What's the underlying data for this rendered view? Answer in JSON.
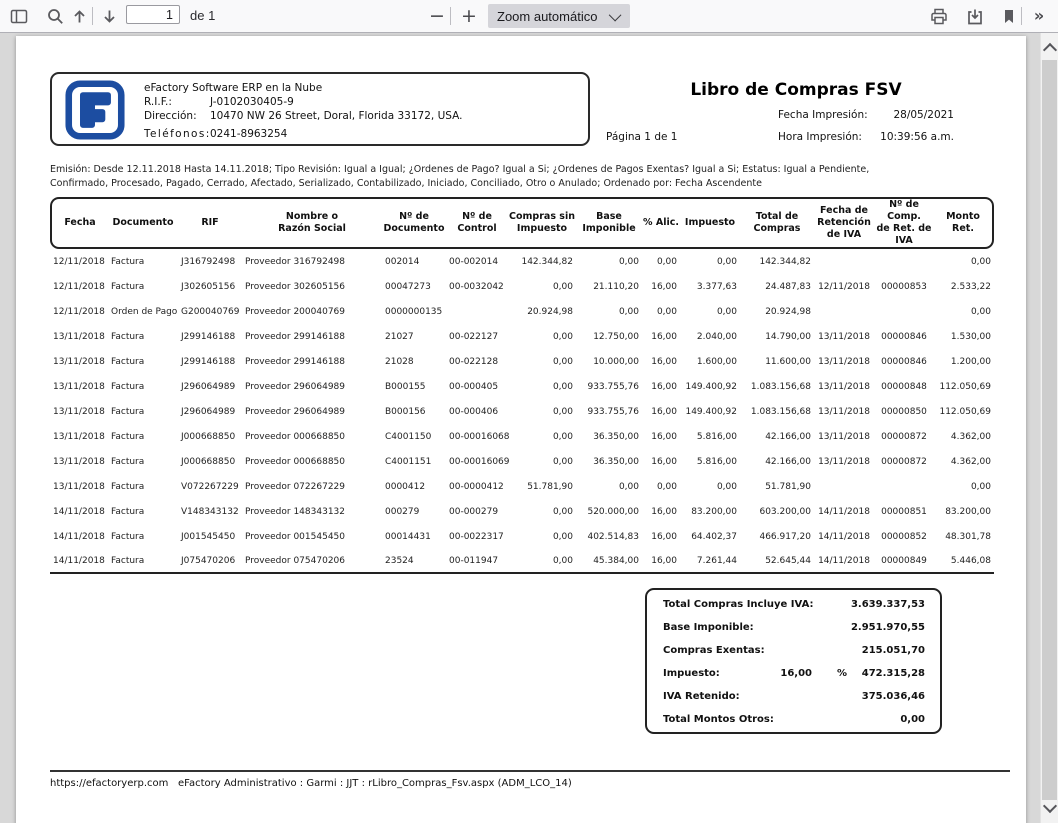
{
  "colors": {
    "logo_blue": "#1c4da1",
    "toolbar_bg": "#f9f9fa",
    "page_bg": "#ffffff"
  },
  "toolbar": {
    "page_input": "1",
    "page_count_label": "de 1",
    "zoom_select": "Zoom automático",
    "zoom_out_glyph": "−",
    "zoom_in_glyph": "+",
    "more_tools_glyph": "»"
  },
  "company": {
    "name": "eFactory Software ERP en la Nube",
    "rif_label": "R.I.F.:",
    "rif": "J-0102030405-9",
    "address_label": "Dirección:",
    "address": "10470 NW 26 Street, Doral, Florida 33172, USA.",
    "phones_label": "Teléfonos:",
    "phones": "0241-8963254"
  },
  "report": {
    "title": "Libro de Compras FSV",
    "fecha_impresion_label": "Fecha Impresión:",
    "fecha_impresion": "28/05/2021",
    "hora_impresion_label": "Hora Impresión:",
    "hora_impresion": "10:39:56 a.m.",
    "page_label": "Página 1 de 1",
    "filter_line1": "Emisión: Desde 12.11.2018  Hasta 14.11.2018; Tipo Revisión: Igual a Igual; ¿Ordenes de Pago? Igual a Si; ¿Ordenes de Pagos Exentas? Igual a Si; Estatus: Igual a Pendiente,",
    "filter_line2": "Confirmado, Procesado, Pagado, Cerrado, Afectado, Serializado, Contabilizado, Iniciado, Conciliado, Otro o Anulado; Ordenado por: Fecha Ascendente"
  },
  "table": {
    "headers": [
      "Fecha",
      "Documento",
      "RIF",
      "Nombre o\nRazón Social",
      "Nº de\nDocumento",
      "Nº de\nControl",
      "Compras sin\nImpuesto",
      "Base\nImponible",
      "% Alic.",
      "Impuesto",
      "Total de\nCompras",
      "Fecha de\nRetención\nde IVA",
      "Nº de Comp.\nde  Ret. de\nIVA",
      "Monto\nRet."
    ],
    "rows": [
      [
        "12/11/2018",
        "Factura",
        "J316792498",
        "Proveedor 316792498",
        "002014",
        "00-002014",
        "142.344,82",
        "0,00",
        "0,00",
        "0,00",
        "142.344,82",
        "",
        "",
        "0,00"
      ],
      [
        "12/11/2018",
        "Factura",
        "J302605156",
        "Proveedor 302605156",
        "00047273",
        "00-0032042",
        "0,00",
        "21.110,20",
        "16,00",
        "3.377,63",
        "24.487,83",
        "12/11/2018",
        "00000853",
        "2.533,22"
      ],
      [
        "12/11/2018",
        "Orden de Pago",
        "G200040769",
        "Proveedor 200040769",
        "0000000135",
        "",
        "20.924,98",
        "0,00",
        "0,00",
        "0,00",
        "20.924,98",
        "",
        "",
        "0,00"
      ],
      [
        "13/11/2018",
        "Factura",
        "J299146188",
        "Proveedor 299146188",
        "21027",
        "00-022127",
        "0,00",
        "12.750,00",
        "16,00",
        "2.040,00",
        "14.790,00",
        "13/11/2018",
        "00000846",
        "1.530,00"
      ],
      [
        "13/11/2018",
        "Factura",
        "J299146188",
        "Proveedor 299146188",
        "21028",
        "00-022128",
        "0,00",
        "10.000,00",
        "16,00",
        "1.600,00",
        "11.600,00",
        "13/11/2018",
        "00000846",
        "1.200,00"
      ],
      [
        "13/11/2018",
        "Factura",
        "J296064989",
        "Proveedor 296064989",
        "B000155",
        "00-000405",
        "0,00",
        "933.755,76",
        "16,00",
        "149.400,92",
        "1.083.156,68",
        "13/11/2018",
        "00000848",
        "112.050,69"
      ],
      [
        "13/11/2018",
        "Factura",
        "J296064989",
        "Proveedor 296064989",
        "B000156",
        "00-000406",
        "0,00",
        "933.755,76",
        "16,00",
        "149.400,92",
        "1.083.156,68",
        "13/11/2018",
        "00000850",
        "112.050,69"
      ],
      [
        "13/11/2018",
        "Factura",
        "J000668850",
        "Proveedor 000668850",
        "C4001150",
        "00-00016068",
        "0,00",
        "36.350,00",
        "16,00",
        "5.816,00",
        "42.166,00",
        "13/11/2018",
        "00000872",
        "4.362,00"
      ],
      [
        "13/11/2018",
        "Factura",
        "J000668850",
        "Proveedor 000668850",
        "C4001151",
        "00-00016069",
        "0,00",
        "36.350,00",
        "16,00",
        "5.816,00",
        "42.166,00",
        "13/11/2018",
        "00000872",
        "4.362,00"
      ],
      [
        "13/11/2018",
        "Factura",
        "V072267229",
        "Proveedor 072267229",
        "0000412",
        "00-0000412",
        "51.781,90",
        "0,00",
        "0,00",
        "0,00",
        "51.781,90",
        "",
        "",
        "0,00"
      ],
      [
        "14/11/2018",
        "Factura",
        "V148343132",
        "Proveedor 148343132",
        "000279",
        "00-000279",
        "0,00",
        "520.000,00",
        "16,00",
        "83.200,00",
        "603.200,00",
        "14/11/2018",
        "00000851",
        "83.200,00"
      ],
      [
        "14/11/2018",
        "Factura",
        "J001545450",
        "Proveedor 001545450",
        "00014431",
        "00-0022317",
        "0,00",
        "402.514,83",
        "16,00",
        "64.402,37",
        "466.917,20",
        "14/11/2018",
        "00000852",
        "48.301,78"
      ],
      [
        "14/11/2018",
        "Factura",
        "J075470206",
        "Proveedor 075470206",
        "23524",
        "00-011947",
        "0,00",
        "45.384,00",
        "16,00",
        "7.261,44",
        "52.645,44",
        "14/11/2018",
        "00000849",
        "5.446,08"
      ]
    ]
  },
  "totals": [
    {
      "label": "Total Compras Incluye IVA:",
      "rate": "",
      "pct": "",
      "value": "3.639.337,53"
    },
    {
      "label": "Base Imponible:",
      "rate": "",
      "pct": "",
      "value": "2.951.970,55"
    },
    {
      "label": "Compras Exentas:",
      "rate": "",
      "pct": "",
      "value": "215.051,70"
    },
    {
      "label": "Impuesto:",
      "rate": "16,00",
      "pct": "%",
      "value": "472.315,28"
    },
    {
      "label": "IVA Retenido:",
      "rate": "",
      "pct": "",
      "value": "375.036,46"
    },
    {
      "label": "Total Montos Otros:",
      "rate": "",
      "pct": "",
      "value": "0,00"
    }
  ],
  "footer": {
    "url": "https://efactoryerp.com",
    "path": "eFactory Administrativo  :  Garmi  :  JJT  :  rLibro_Compras_Fsv.aspx (ADM_LCO_14)"
  }
}
